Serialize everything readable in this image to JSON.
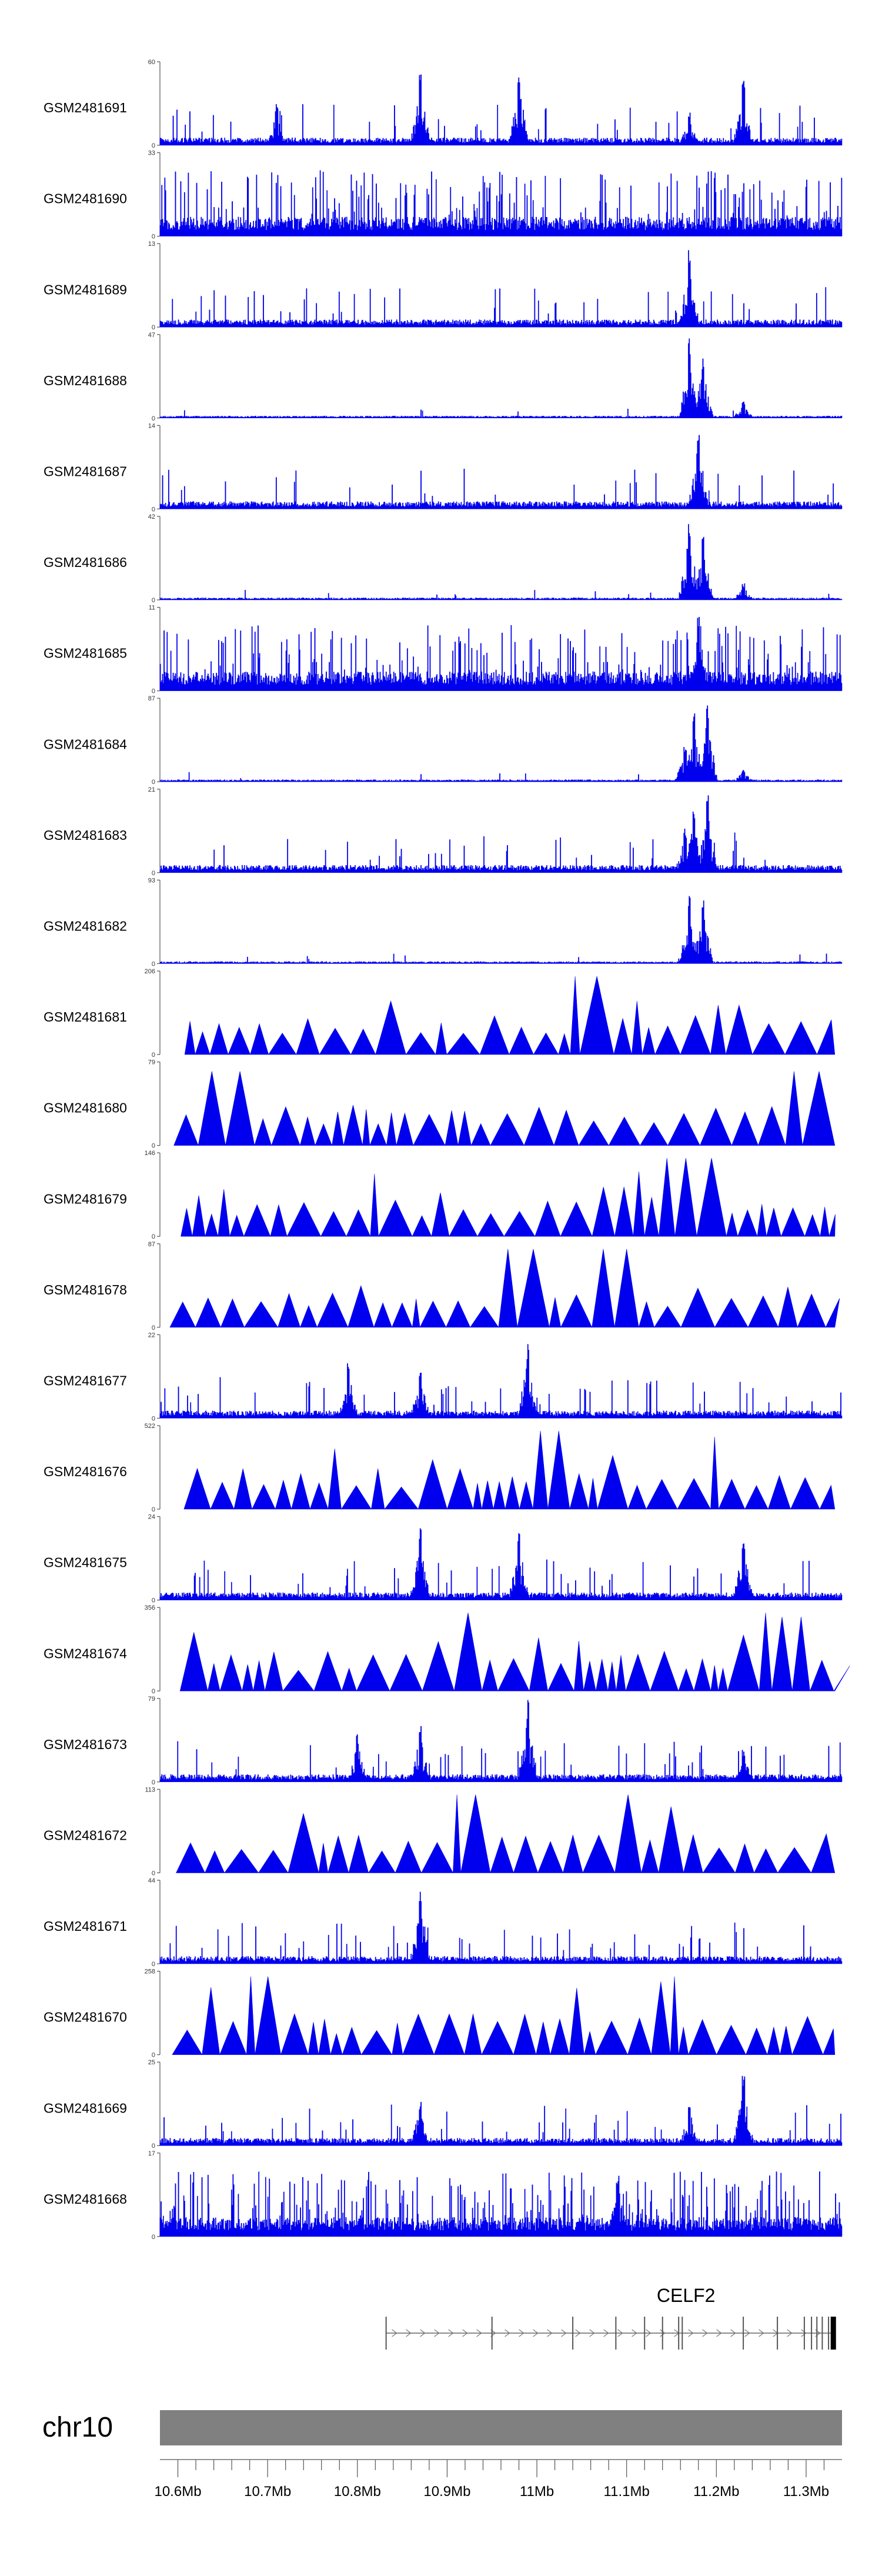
{
  "chart_data": {
    "type": "area",
    "title": "",
    "chromosome": "chr10",
    "gene": {
      "name": "CELF2",
      "start": 10.832,
      "end": 11.33,
      "strand": "+"
    },
    "xlim": [
      10.58,
      11.34
    ],
    "xticks": [
      {
        "value": 10.6,
        "label": "10.6Mb"
      },
      {
        "value": 10.7,
        "label": "10.7Mb"
      },
      {
        "value": 10.8,
        "label": "10.8Mb"
      },
      {
        "value": 10.9,
        "label": "10.9Mb"
      },
      {
        "value": 11.0,
        "label": "11Mb"
      },
      {
        "value": 11.1,
        "label": "11.1Mb"
      },
      {
        "value": 11.2,
        "label": "11.2Mb"
      },
      {
        "value": 11.3,
        "label": "11.3Mb"
      }
    ],
    "exons_mb": [
      10.832,
      10.95,
      11.04,
      11.088,
      11.12,
      11.14,
      11.158,
      11.162,
      11.23,
      11.268,
      11.298,
      11.306,
      11.312,
      11.318,
      11.325,
      11.33
    ],
    "series": [
      {
        "name": "GSM2481691",
        "ymax": 60,
        "style": "dense",
        "peaks": [
          [
            10.71,
            0.5
          ],
          [
            10.87,
            1.0
          ],
          [
            10.98,
            0.95
          ],
          [
            11.17,
            0.4
          ],
          [
            11.23,
            0.8
          ]
        ]
      },
      {
        "name": "GSM2481690",
        "ymax": 33,
        "style": "noisy",
        "peaks": []
      },
      {
        "name": "GSM2481689",
        "ymax": 13,
        "style": "dense",
        "peaks": [
          [
            11.17,
            1.0
          ]
        ]
      },
      {
        "name": "GSM2481688",
        "ymax": 47,
        "style": "sparse",
        "peaks": [
          [
            11.17,
            1.0
          ],
          [
            11.185,
            0.75
          ],
          [
            11.23,
            0.2
          ]
        ]
      },
      {
        "name": "GSM2481687",
        "ymax": 14,
        "style": "dense",
        "peaks": [
          [
            11.18,
            1.0
          ]
        ]
      },
      {
        "name": "GSM2481686",
        "ymax": 42,
        "style": "sparse",
        "peaks": [
          [
            11.17,
            1.0
          ],
          [
            11.185,
            0.85
          ],
          [
            11.23,
            0.2
          ]
        ]
      },
      {
        "name": "GSM2481685",
        "ymax": 11,
        "style": "noisy",
        "peaks": [
          [
            11.18,
            1.0
          ]
        ]
      },
      {
        "name": "GSM2481684",
        "ymax": 87,
        "style": "sparse",
        "peaks": [
          [
            11.165,
            0.45
          ],
          [
            11.175,
            0.85
          ],
          [
            11.19,
            0.95
          ],
          [
            11.23,
            0.15
          ]
        ]
      },
      {
        "name": "GSM2481683",
        "ymax": 21,
        "style": "dense",
        "peaks": [
          [
            11.165,
            0.55
          ],
          [
            11.175,
            0.8
          ],
          [
            11.19,
            0.95
          ]
        ]
      },
      {
        "name": "GSM2481682",
        "ymax": 93,
        "style": "sparse",
        "peaks": [
          [
            11.17,
            0.85
          ],
          [
            11.185,
            0.8
          ]
        ]
      },
      {
        "name": "GSM2481681",
        "ymax": 206,
        "style": "triangles",
        "peaks": [
          [
            10.84,
            0.65
          ],
          [
            11.06,
            0.95
          ],
          [
            11.22,
            0.6
          ]
        ]
      },
      {
        "name": "GSM2481680",
        "ymax": 79,
        "style": "triangles",
        "peaks": [
          [
            10.63,
            0.9
          ],
          [
            10.65,
            0.9
          ],
          [
            11.29,
            0.9
          ],
          [
            11.31,
            0.9
          ]
        ]
      },
      {
        "name": "GSM2481679",
        "ymax": 146,
        "style": "triangles",
        "peaks": [
          [
            11.09,
            0.6
          ],
          [
            11.16,
            0.95
          ],
          [
            11.18,
            0.95
          ]
        ]
      },
      {
        "name": "GSM2481678",
        "ymax": 87,
        "style": "triangles",
        "peaks": [
          [
            10.98,
            0.95
          ],
          [
            11.09,
            0.95
          ]
        ]
      },
      {
        "name": "GSM2481677",
        "ymax": 22,
        "style": "dense",
        "peaks": [
          [
            10.79,
            0.7
          ],
          [
            10.87,
            0.6
          ],
          [
            10.99,
            0.95
          ]
        ]
      },
      {
        "name": "GSM2481676",
        "ymax": 522,
        "style": "triangles",
        "peaks": [
          [
            11.01,
            0.95
          ],
          [
            10.87,
            0.6
          ]
        ]
      },
      {
        "name": "GSM2481675",
        "ymax": 24,
        "style": "dense",
        "peaks": [
          [
            10.87,
            0.9
          ],
          [
            10.98,
            0.85
          ],
          [
            11.23,
            0.8
          ]
        ]
      },
      {
        "name": "GSM2481674",
        "ymax": 356,
        "style": "triangles",
        "peaks": [
          [
            10.92,
            0.95
          ],
          [
            10.89,
            0.6
          ],
          [
            11.25,
            0.95
          ],
          [
            11.28,
            0.9
          ]
        ]
      },
      {
        "name": "GSM2481673",
        "ymax": 79,
        "style": "dense",
        "peaks": [
          [
            10.8,
            0.6
          ],
          [
            10.87,
            0.7
          ],
          [
            10.99,
            1.0
          ],
          [
            11.23,
            0.4
          ]
        ]
      },
      {
        "name": "GSM2481672",
        "ymax": 113,
        "style": "triangles",
        "peaks": [
          [
            11.1,
            0.95
          ],
          [
            10.93,
            0.95
          ]
        ]
      },
      {
        "name": "GSM2481671",
        "ymax": 44,
        "style": "dense",
        "peaks": [
          [
            10.87,
            1.0
          ]
        ]
      },
      {
        "name": "GSM2481670",
        "ymax": 258,
        "style": "triangles",
        "peaks": [
          [
            11.14,
            0.95
          ],
          [
            10.69,
            0.95
          ]
        ]
      },
      {
        "name": "GSM2481669",
        "ymax": 25,
        "style": "dense",
        "peaks": [
          [
            10.87,
            0.55
          ],
          [
            11.17,
            0.5
          ],
          [
            11.23,
            0.95
          ]
        ]
      },
      {
        "name": "GSM2481668",
        "ymax": 17,
        "style": "noisy",
        "peaks": [
          [
            11.09,
            0.8
          ]
        ]
      }
    ]
  }
}
